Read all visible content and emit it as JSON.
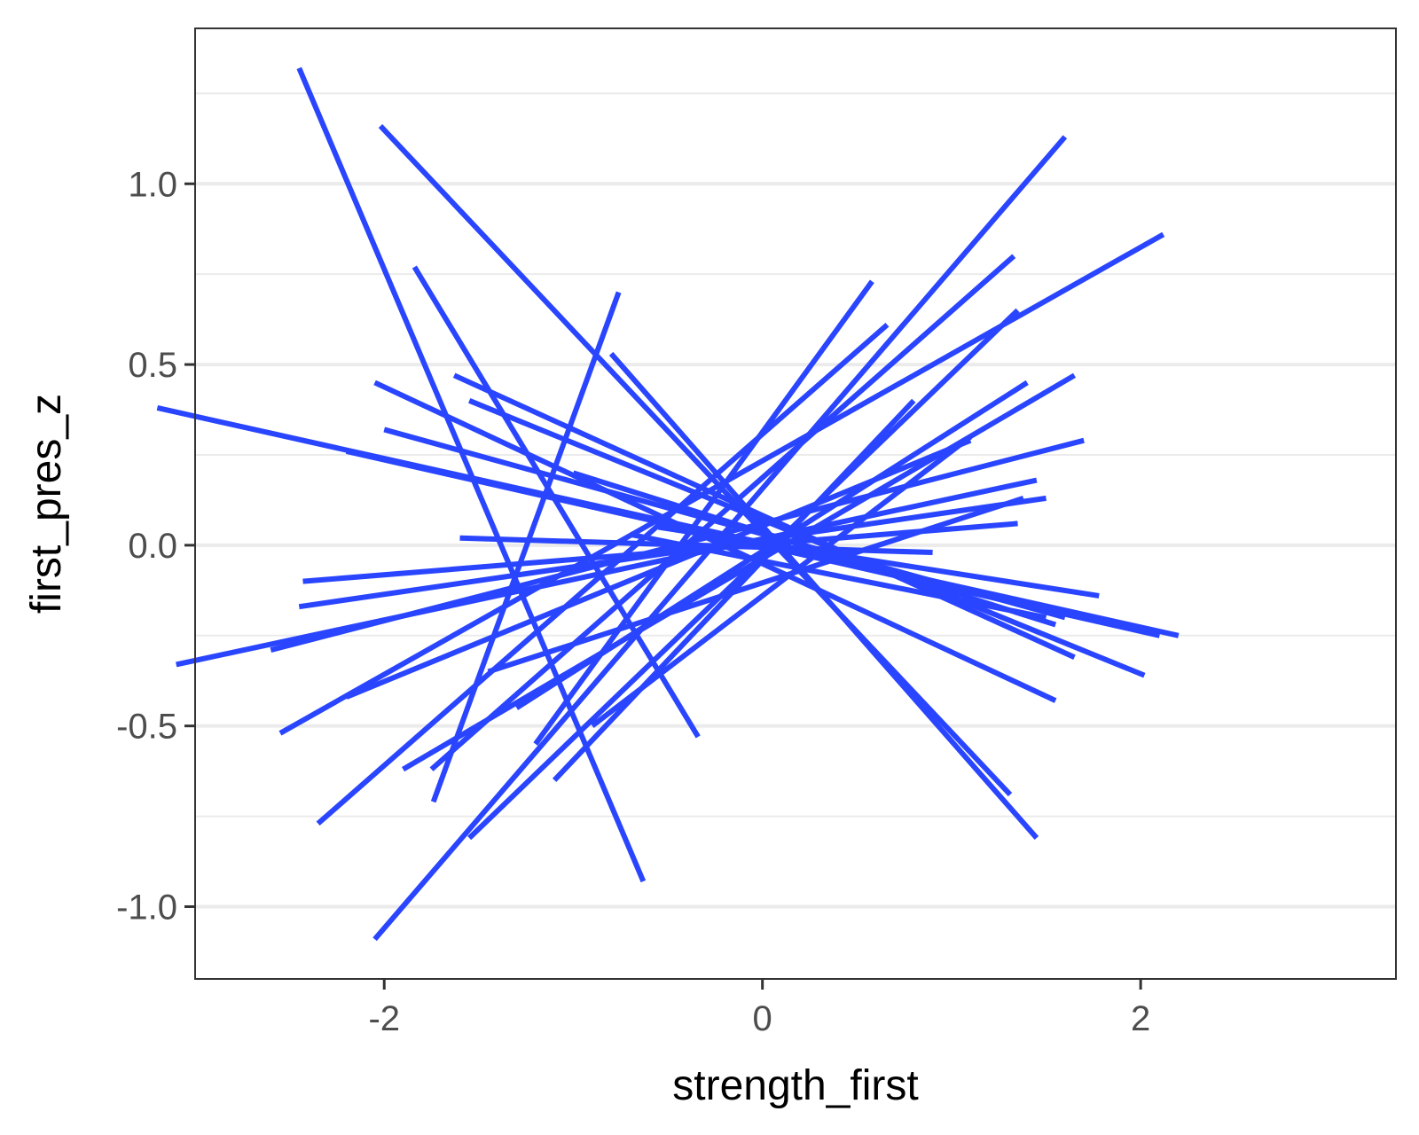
{
  "chart_data": {
    "type": "line",
    "title": "",
    "xlabel": "strength_first",
    "ylabel": "first_pres_z",
    "xlim": [
      -3.0,
      3.35
    ],
    "ylim": [
      -1.2,
      1.43
    ],
    "x_ticks": [
      -2,
      0,
      2
    ],
    "x_tick_labels": [
      "-2",
      "0",
      "2"
    ],
    "y_ticks": [
      -1.0,
      -0.5,
      0.0,
      0.5,
      1.0
    ],
    "y_tick_labels": [
      "-1.0",
      "-0.5",
      "0.0",
      "0.5",
      "1.0"
    ],
    "y_minor_gridlines": [
      -0.75,
      -0.25,
      0.25,
      0.75,
      1.25
    ],
    "grid": "horizontal only",
    "legend": "none",
    "line_color": "#2a45ff",
    "panel_background": "#ffffff",
    "gridline_color": "#ebebeb",
    "segments": [
      {
        "x": [
          -2.45,
          -0.63
        ],
        "y": [
          1.32,
          -0.93
        ]
      },
      {
        "x": [
          -2.02,
          1.31
        ],
        "y": [
          1.16,
          -0.69
        ]
      },
      {
        "x": [
          -1.84,
          -0.34
        ],
        "y": [
          0.77,
          -0.53
        ]
      },
      {
        "x": [
          -0.76,
          -1.74
        ],
        "y": [
          0.7,
          -0.71
        ]
      },
      {
        "x": [
          -0.8,
          1.45
        ],
        "y": [
          0.53,
          -0.81
        ]
      },
      {
        "x": [
          -3.2,
          2.2
        ],
        "y": [
          0.38,
          -0.25
        ]
      },
      {
        "x": [
          -2.05,
          1.55
        ],
        "y": [
          0.45,
          -0.43
        ]
      },
      {
        "x": [
          -1.63,
          1.65
        ],
        "y": [
          0.47,
          -0.31
        ]
      },
      {
        "x": [
          -1.55,
          2.02
        ],
        "y": [
          0.4,
          -0.36
        ]
      },
      {
        "x": [
          -2.0,
          1.6
        ],
        "y": [
          0.32,
          -0.2
        ]
      },
      {
        "x": [
          -2.2,
          2.1
        ],
        "y": [
          0.26,
          -0.25
        ]
      },
      {
        "x": [
          -1.6,
          0.9
        ],
        "y": [
          0.02,
          -0.02
        ]
      },
      {
        "x": [
          -2.43,
          1.35
        ],
        "y": [
          -0.1,
          0.06
        ]
      },
      {
        "x": [
          -2.45,
          1.5
        ],
        "y": [
          -0.17,
          0.13
        ]
      },
      {
        "x": [
          -2.6,
          1.7
        ],
        "y": [
          -0.29,
          0.29
        ]
      },
      {
        "x": [
          -3.1,
          1.45
        ],
        "y": [
          -0.33,
          0.18
        ]
      },
      {
        "x": [
          -2.2,
          1.1
        ],
        "y": [
          -0.42,
          0.29
        ]
      },
      {
        "x": [
          -2.55,
          2.12
        ],
        "y": [
          -0.52,
          0.86
        ]
      },
      {
        "x": [
          -1.9,
          1.65
        ],
        "y": [
          -0.62,
          0.47
        ]
      },
      {
        "x": [
          -1.75,
          1.33
        ],
        "y": [
          -0.62,
          0.8
        ]
      },
      {
        "x": [
          -2.35,
          0.66
        ],
        "y": [
          -0.77,
          0.61
        ]
      },
      {
        "x": [
          -2.05,
          1.6
        ],
        "y": [
          -1.09,
          1.13
        ]
      },
      {
        "x": [
          -1.55,
          1.35
        ],
        "y": [
          -0.81,
          0.65
        ]
      },
      {
        "x": [
          -1.2,
          0.58
        ],
        "y": [
          -0.55,
          0.73
        ]
      },
      {
        "x": [
          -1.1,
          0.8
        ],
        "y": [
          -0.65,
          0.4
        ]
      },
      {
        "x": [
          -0.9,
          1.1
        ],
        "y": [
          -0.5,
          0.3
        ]
      },
      {
        "x": [
          -1.3,
          1.4
        ],
        "y": [
          -0.45,
          0.45
        ]
      },
      {
        "x": [
          -1.45,
          1.38
        ],
        "y": [
          -0.35,
          0.13
        ]
      },
      {
        "x": [
          -0.55,
          1.78
        ],
        "y": [
          0.05,
          -0.14
        ]
      },
      {
        "x": [
          -0.7,
          1.5
        ],
        "y": [
          0.03,
          -0.2
        ]
      },
      {
        "x": [
          -1.0,
          1.55
        ],
        "y": [
          0.2,
          -0.22
        ]
      }
    ]
  }
}
